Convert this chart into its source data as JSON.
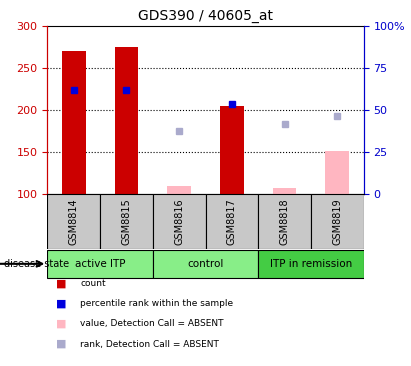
{
  "title": "GDS390 / 40605_at",
  "samples": [
    "GSM8814",
    "GSM8815",
    "GSM8816",
    "GSM8817",
    "GSM8818",
    "GSM8819"
  ],
  "bar_values": [
    270,
    275,
    null,
    204,
    null,
    null
  ],
  "bar_color": "#CC0000",
  "absent_bar_values": [
    null,
    null,
    110,
    null,
    107,
    151
  ],
  "absent_bar_color": "#FFB6C1",
  "dot_values": [
    224,
    224,
    null,
    207,
    null,
    null
  ],
  "dot_color": "#0000DD",
  "absent_dot_values": [
    null,
    null,
    175,
    null,
    183,
    193
  ],
  "absent_dot_color": "#AAAACC",
  "ylim_left": [
    100,
    300
  ],
  "ylim_right": [
    0,
    100
  ],
  "yticks_left": [
    100,
    150,
    200,
    250,
    300
  ],
  "yticks_right": [
    0,
    25,
    50,
    75,
    100
  ],
  "ytick_labels_right": [
    "0",
    "25",
    "50",
    "75",
    "100%"
  ],
  "grid_values": [
    150,
    200,
    250
  ],
  "bar_width": 0.45,
  "sample_bg_color": "#C8C8C8",
  "plot_bg_color": "#FFFFFF",
  "left_axis_color": "#CC0000",
  "right_axis_color": "#0000CC",
  "group_configs": [
    {
      "label": "active ITP",
      "start": 0,
      "end": 1,
      "color": "#88EE88"
    },
    {
      "label": "control",
      "start": 2,
      "end": 3,
      "color": "#88EE88"
    },
    {
      "label": "ITP in remission",
      "start": 4,
      "end": 5,
      "color": "#44CC44"
    }
  ],
  "legend_items": [
    {
      "label": "count",
      "color": "#CC0000"
    },
    {
      "label": "percentile rank within the sample",
      "color": "#0000DD"
    },
    {
      "label": "value, Detection Call = ABSENT",
      "color": "#FFB6C1"
    },
    {
      "label": "rank, Detection Call = ABSENT",
      "color": "#AAAACC"
    }
  ],
  "disease_state_label": "disease state"
}
